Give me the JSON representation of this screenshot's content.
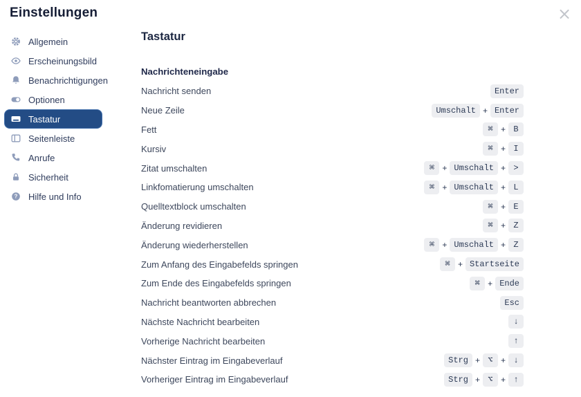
{
  "window": {
    "title": "Einstellungen",
    "close_glyph": "×"
  },
  "colors": {
    "accent": "#234c85",
    "accent-border": "#4471ad",
    "icon": "#8e9cba",
    "key-bg": "#edeef1",
    "key-text": "#2c3a55",
    "text-dark": "#151d35",
    "text-label": "#3d475c",
    "close": "#c2c5cb"
  },
  "sidebar": {
    "items": [
      {
        "label": "Allgemein",
        "icon": "gear-icon",
        "selected": false
      },
      {
        "label": "Erscheinungsbild",
        "icon": "eye-icon",
        "selected": false
      },
      {
        "label": "Benachrichtigungen",
        "icon": "bell-icon",
        "selected": false
      },
      {
        "label": "Optionen",
        "icon": "toggle-icon",
        "selected": false
      },
      {
        "label": "Tastatur",
        "icon": "keyboard-icon",
        "selected": true
      },
      {
        "label": "Seitenleiste",
        "icon": "sidebar-icon",
        "selected": false
      },
      {
        "label": "Anrufe",
        "icon": "phone-icon",
        "selected": false
      },
      {
        "label": "Sicherheit",
        "icon": "lock-icon",
        "selected": false
      },
      {
        "label": "Hilfe und Info",
        "icon": "question-icon",
        "selected": false
      }
    ]
  },
  "main": {
    "title": "Tastatur",
    "section": "Nachrichteneingabe",
    "shortcuts": [
      {
        "label": "Nachricht senden",
        "keys": [
          "Enter"
        ]
      },
      {
        "label": "Neue Zeile",
        "keys": [
          "Umschalt",
          "Enter"
        ]
      },
      {
        "label": "Fett",
        "keys": [
          "⌘",
          "B"
        ]
      },
      {
        "label": "Kursiv",
        "keys": [
          "⌘",
          "I"
        ]
      },
      {
        "label": "Zitat umschalten",
        "keys": [
          "⌘",
          "Umschalt",
          ">"
        ]
      },
      {
        "label": "Linkfomatierung umschalten",
        "keys": [
          "⌘",
          "Umschalt",
          "L"
        ]
      },
      {
        "label": "Quelltextblock umschalten",
        "keys": [
          "⌘",
          "E"
        ]
      },
      {
        "label": "Änderung revidieren",
        "keys": [
          "⌘",
          "Z"
        ]
      },
      {
        "label": "Änderung wiederherstellen",
        "keys": [
          "⌘",
          "Umschalt",
          "Z"
        ]
      },
      {
        "label": "Zum Anfang des Eingabefelds springen",
        "keys": [
          "⌘",
          "Startseite"
        ]
      },
      {
        "label": "Zum Ende des Eingabefelds springen",
        "keys": [
          "⌘",
          "Ende"
        ]
      },
      {
        "label": "Nachricht beantworten abbrechen",
        "keys": [
          "Esc"
        ]
      },
      {
        "label": "Nächste Nachricht bearbeiten",
        "keys": [
          "↓"
        ]
      },
      {
        "label": "Vorherige Nachricht bearbeiten",
        "keys": [
          "↑"
        ]
      },
      {
        "label": "Nächster Eintrag im Eingabeverlauf",
        "keys": [
          "Strg",
          "⌥",
          "↓"
        ]
      },
      {
        "label": "Vorheriger Eintrag im Eingabeverlauf",
        "keys": [
          "Strg",
          "⌥",
          "↑"
        ]
      }
    ]
  }
}
